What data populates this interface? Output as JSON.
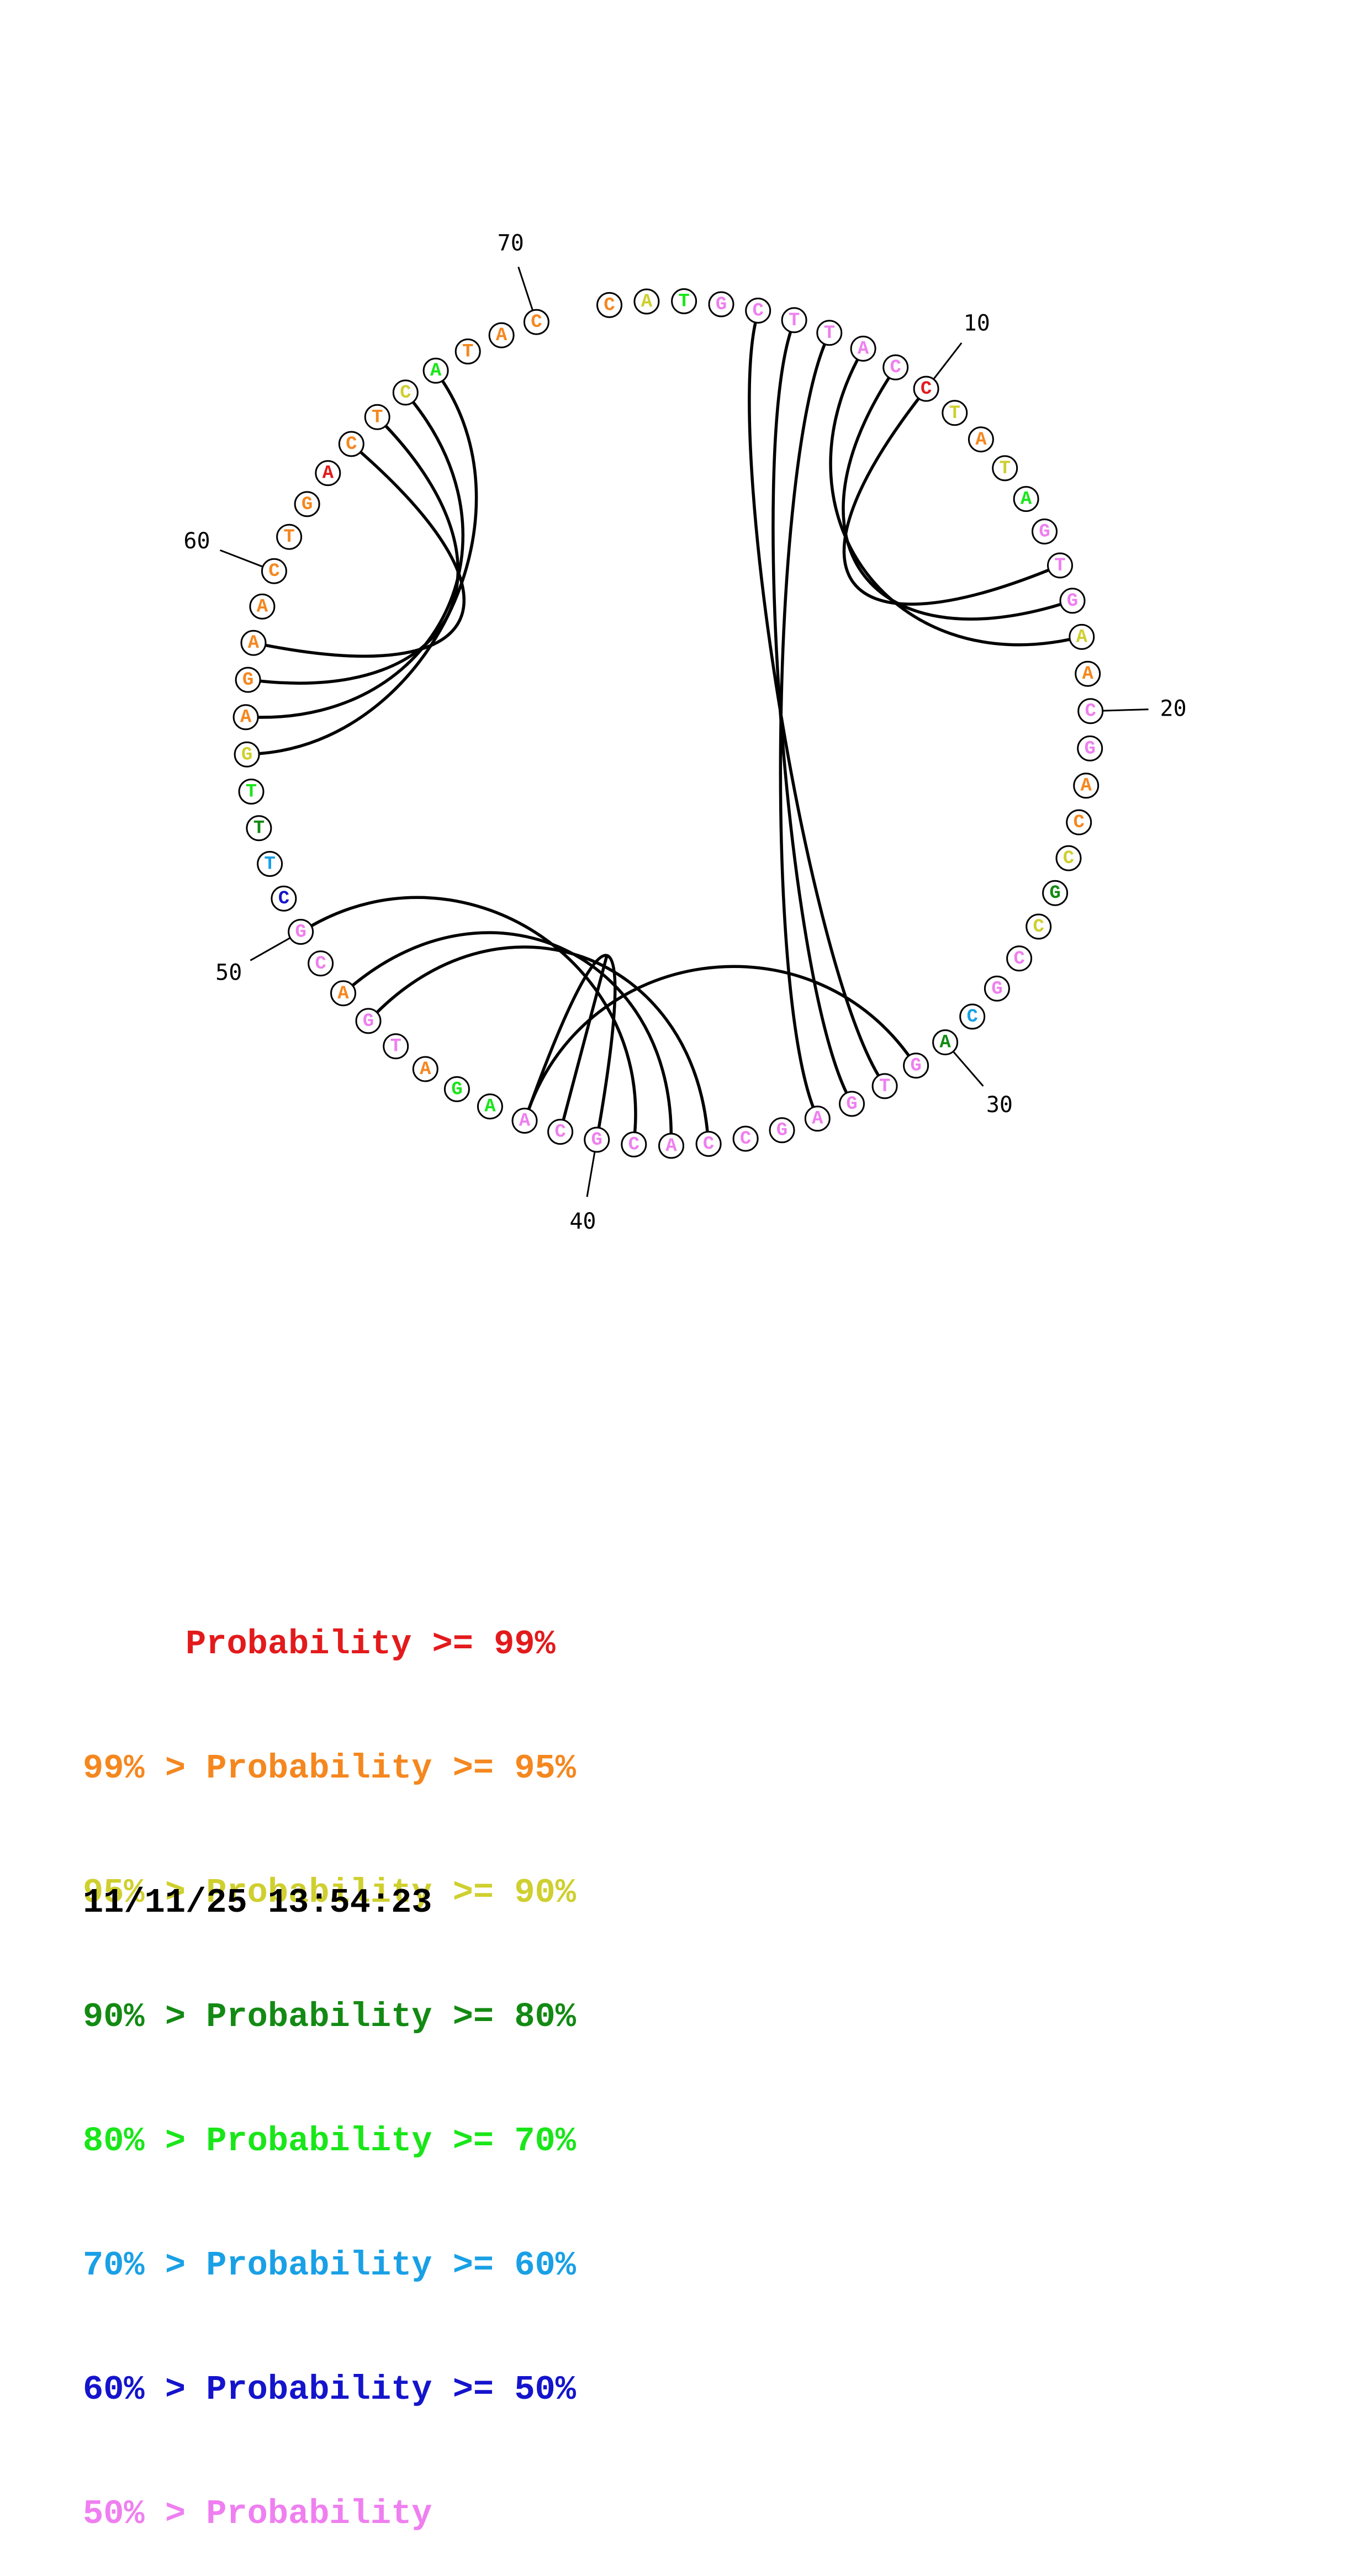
{
  "colors": {
    "red": "#e31a1c",
    "orange": "#f5871f",
    "yellow": "#cfcf2f",
    "darkgreen": "#138a13",
    "green": "#19e619",
    "cyan": "#19a0e6",
    "blue": "#1414cc",
    "pink": "#ef7ff0"
  },
  "sequence": [
    {
      "b": "C",
      "c": "orange"
    },
    {
      "b": "A",
      "c": "yellow"
    },
    {
      "b": "T",
      "c": "green"
    },
    {
      "b": "G",
      "c": "pink"
    },
    {
      "b": "C",
      "c": "pink"
    },
    {
      "b": "T",
      "c": "pink"
    },
    {
      "b": "T",
      "c": "pink"
    },
    {
      "b": "A",
      "c": "pink"
    },
    {
      "b": "C",
      "c": "pink"
    },
    {
      "b": "C",
      "c": "red"
    },
    {
      "b": "T",
      "c": "yellow"
    },
    {
      "b": "A",
      "c": "orange"
    },
    {
      "b": "T",
      "c": "yellow"
    },
    {
      "b": "A",
      "c": "green"
    },
    {
      "b": "G",
      "c": "pink"
    },
    {
      "b": "T",
      "c": "pink"
    },
    {
      "b": "G",
      "c": "pink"
    },
    {
      "b": "A",
      "c": "yellow"
    },
    {
      "b": "A",
      "c": "orange"
    },
    {
      "b": "C",
      "c": "pink"
    },
    {
      "b": "G",
      "c": "pink"
    },
    {
      "b": "A",
      "c": "orange"
    },
    {
      "b": "C",
      "c": "orange"
    },
    {
      "b": "C",
      "c": "yellow"
    },
    {
      "b": "G",
      "c": "darkgreen"
    },
    {
      "b": "C",
      "c": "yellow"
    },
    {
      "b": "C",
      "c": "pink"
    },
    {
      "b": "G",
      "c": "pink"
    },
    {
      "b": "C",
      "c": "cyan"
    },
    {
      "b": "A",
      "c": "darkgreen"
    },
    {
      "b": "G",
      "c": "pink"
    },
    {
      "b": "T",
      "c": "pink"
    },
    {
      "b": "G",
      "c": "pink"
    },
    {
      "b": "A",
      "c": "pink"
    },
    {
      "b": "G",
      "c": "pink"
    },
    {
      "b": "C",
      "c": "pink"
    },
    {
      "b": "C",
      "c": "pink"
    },
    {
      "b": "A",
      "c": "pink"
    },
    {
      "b": "C",
      "c": "pink"
    },
    {
      "b": "G",
      "c": "pink"
    },
    {
      "b": "C",
      "c": "pink"
    },
    {
      "b": "A",
      "c": "pink"
    },
    {
      "b": "A",
      "c": "green"
    },
    {
      "b": "G",
      "c": "green"
    },
    {
      "b": "A",
      "c": "orange"
    },
    {
      "b": "T",
      "c": "pink"
    },
    {
      "b": "G",
      "c": "pink"
    },
    {
      "b": "A",
      "c": "orange"
    },
    {
      "b": "C",
      "c": "pink"
    },
    {
      "b": "G",
      "c": "pink"
    },
    {
      "b": "C",
      "c": "blue"
    },
    {
      "b": "T",
      "c": "cyan"
    },
    {
      "b": "T",
      "c": "darkgreen"
    },
    {
      "b": "T",
      "c": "green"
    },
    {
      "b": "G",
      "c": "yellow"
    },
    {
      "b": "A",
      "c": "orange"
    },
    {
      "b": "G",
      "c": "orange"
    },
    {
      "b": "A",
      "c": "orange"
    },
    {
      "b": "A",
      "c": "orange"
    },
    {
      "b": "C",
      "c": "orange"
    },
    {
      "b": "T",
      "c": "orange"
    },
    {
      "b": "G",
      "c": "orange"
    },
    {
      "b": "A",
      "c": "red"
    },
    {
      "b": "C",
      "c": "orange"
    },
    {
      "b": "T",
      "c": "orange"
    },
    {
      "b": "C",
      "c": "yellow"
    },
    {
      "b": "A",
      "c": "green"
    },
    {
      "b": "T",
      "c": "orange"
    },
    {
      "b": "A",
      "c": "orange"
    },
    {
      "b": "C",
      "c": "orange"
    }
  ],
  "pairs": [
    [
      4,
      31
    ],
    [
      5,
      32
    ],
    [
      6,
      33
    ],
    [
      7,
      17
    ],
    [
      8,
      16
    ],
    [
      9,
      15
    ],
    [
      36,
      46
    ],
    [
      37,
      47
    ],
    [
      38,
      49
    ],
    [
      39,
      41
    ],
    [
      40,
      40
    ],
    [
      41,
      30
    ],
    [
      54,
      66
    ],
    [
      55,
      65
    ],
    [
      56,
      64
    ],
    [
      57,
      63
    ]
  ],
  "position_labels": [
    "10",
    "20",
    "30",
    "40",
    "50",
    "60",
    "70"
  ],
  "legend": [
    {
      "prefix": "     ",
      "text": "Probability >= 99%",
      "color": "red"
    },
    {
      "prefix": "",
      "text": "99% > Probability >= 95%",
      "color": "orange"
    },
    {
      "prefix": "",
      "text": "95% > Probability >= 90%",
      "color": "yellow"
    },
    {
      "prefix": "",
      "text": "90% > Probability >= 80%",
      "color": "darkgreen"
    },
    {
      "prefix": "",
      "text": "80% > Probability >= 70%",
      "color": "green"
    },
    {
      "prefix": "",
      "text": "70% > Probability >= 60%",
      "color": "cyan"
    },
    {
      "prefix": "",
      "text": "60% > Probability >= 50%",
      "color": "blue"
    },
    {
      "prefix": "",
      "text": "50% > Probability",
      "color": "pink"
    }
  ],
  "timestamp": "11/11/25 13:54:23"
}
